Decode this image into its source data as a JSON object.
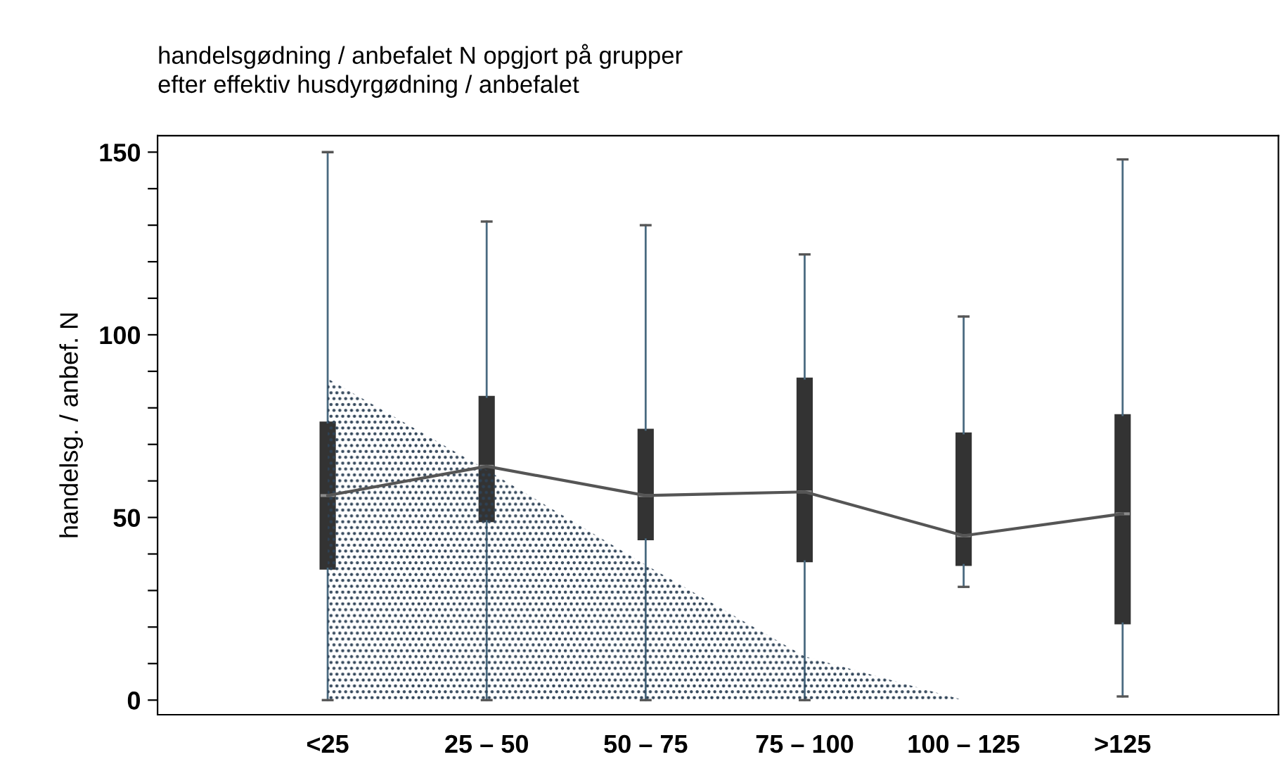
{
  "chart_data": {
    "type": "box",
    "title": "handelsgødning / anbefalet N opgjort på grupper\nefter effektiv husdyrgødning / anbefalet",
    "ylabel": "handelsg. / anbef. N",
    "categories": [
      "<25",
      "25 – 50",
      "50 – 75",
      "75 – 100",
      "100 – 125",
      ">125"
    ],
    "ylim": [
      -4,
      154.5
    ],
    "yticks": [
      0,
      {
        "value": 10,
        "label": null
      },
      {
        "value": 20,
        "label": null
      },
      {
        "value": 30,
        "label": null
      },
      {
        "value": 40,
        "label": null
      },
      50,
      {
        "value": 60,
        "label": null
      },
      {
        "value": 70,
        "label": null
      },
      {
        "value": 80,
        "label": null
      },
      {
        "value": 90,
        "label": null
      },
      100,
      {
        "value": 110,
        "label": null
      },
      {
        "value": 120,
        "label": null
      },
      {
        "value": 130,
        "label": null
      },
      {
        "value": 140,
        "label": null
      },
      150
    ],
    "grid": false,
    "series": [
      {
        "color": "#333333",
        "boxes": [
          {
            "low": 0,
            "q1": 36,
            "median": 56,
            "q3": 76,
            "high": 150
          },
          {
            "low": 0,
            "q1": 49,
            "median": 64,
            "q3": 83,
            "high": 131
          },
          {
            "low": 0,
            "q1": 44,
            "median": 56,
            "q3": 74,
            "high": 130
          },
          {
            "low": 0,
            "q1": 38,
            "median": 57,
            "q3": 88,
            "high": 122
          },
          {
            "low": 31,
            "q1": 37,
            "median": 45,
            "q3": 73,
            "high": 105
          },
          {
            "low": 1,
            "q1": 21,
            "median": 51,
            "q3": 78,
            "high": 148
          }
        ]
      },
      {
        "type": "line",
        "color": "#555555",
        "values": [
          56,
          64,
          56,
          57,
          45,
          51
        ]
      },
      {
        "type": "area",
        "color": "#2e4256",
        "values": [
          88,
          63,
          37,
          12,
          0,
          null
        ]
      }
    ]
  }
}
